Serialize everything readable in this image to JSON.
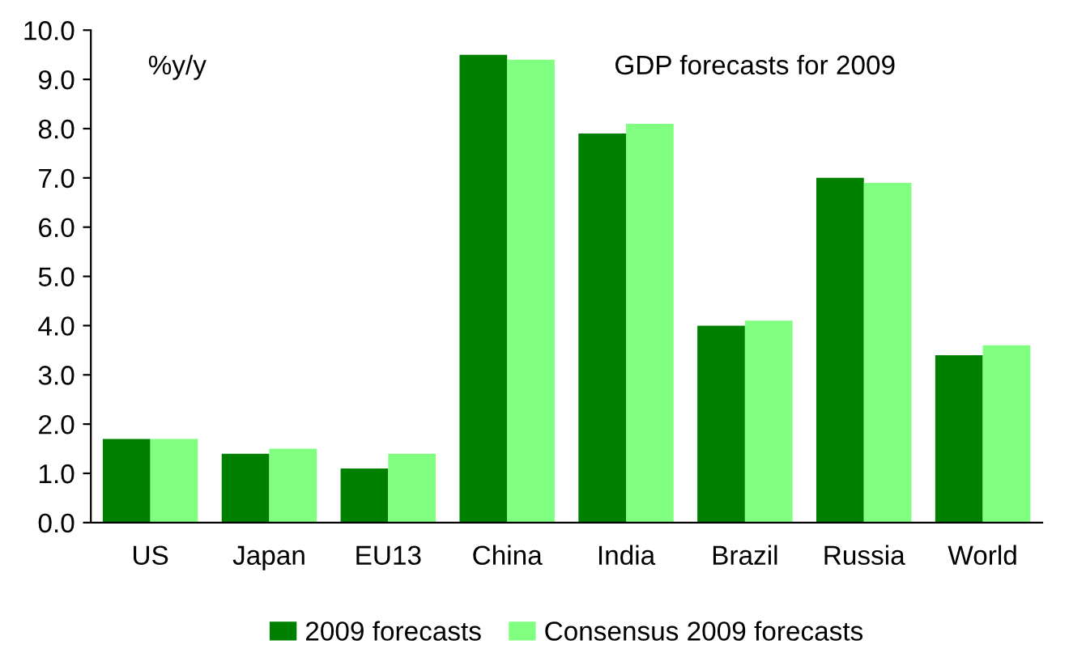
{
  "chart_data": {
    "type": "bar",
    "categories": [
      "US",
      "Japan",
      "EU13",
      "China",
      "India",
      "Brazil",
      "Russia",
      "World"
    ],
    "series": [
      {
        "name": "2009 forecasts",
        "color": "#008000",
        "values": [
          1.7,
          1.4,
          1.1,
          9.5,
          7.9,
          4.0,
          7.0,
          3.4
        ]
      },
      {
        "name": "Consensus 2009 forecasts",
        "color": "#80ff80",
        "values": [
          1.7,
          1.5,
          1.4,
          9.4,
          8.1,
          4.1,
          6.9,
          3.6
        ]
      }
    ],
    "ylim": [
      0,
      10
    ],
    "yticks": [
      {
        "value": 0,
        "label": "0.0"
      },
      {
        "value": 1,
        "label": "1.0"
      },
      {
        "value": 2,
        "label": "2.0"
      },
      {
        "value": 3,
        "label": "3.0"
      },
      {
        "value": 4,
        "label": "4.0"
      },
      {
        "value": 5,
        "label": "5.0"
      },
      {
        "value": 6,
        "label": "6.0"
      },
      {
        "value": 7,
        "label": "7.0"
      },
      {
        "value": 8,
        "label": "8.0"
      },
      {
        "value": 9,
        "label": "9.0"
      },
      {
        "value": 10,
        "label": "10.0"
      }
    ],
    "annotations": [
      "%y/y",
      "GDP forecasts for 2009"
    ],
    "legend": "bottom",
    "grid": false
  }
}
